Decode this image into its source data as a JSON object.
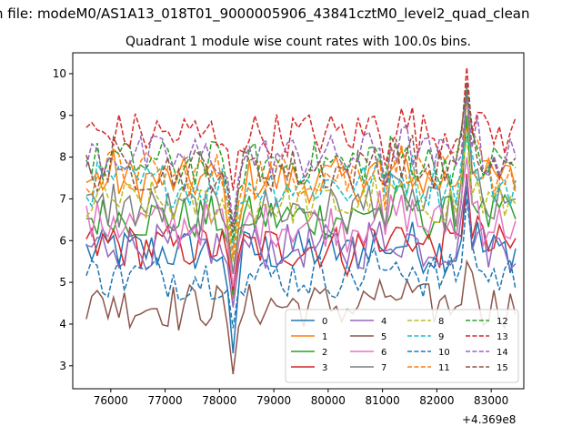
{
  "figure": {
    "suptitle": "n file: modeM0/AS1A13_018T01_9000005906_43841cztM0_level2_quad_clean",
    "title": "Quadrant 1 module wise count rates with 100.0s bins.",
    "x_offset_label": "+4.369e8"
  },
  "chart_data": {
    "type": "line",
    "title": "Quadrant 1 module wise count rates with 100.0s bins.",
    "xlabel": "",
    "ylabel": "",
    "x_offset": "+4.369e8",
    "xlim": [
      75300,
      83600
    ],
    "ylim": [
      2.45,
      10.5
    ],
    "x_ticks": [
      76000,
      77000,
      78000,
      79000,
      80000,
      81000,
      82000,
      83000
    ],
    "x_tick_labels": [
      "76000",
      "77000",
      "78000",
      "79000",
      "80000",
      "81000",
      "82000",
      "83000"
    ],
    "y_ticks": [
      3,
      4,
      5,
      6,
      7,
      8,
      9,
      10
    ],
    "y_tick_labels": [
      "3",
      "4",
      "5",
      "6",
      "7",
      "8",
      "9",
      "10"
    ],
    "grid": false,
    "legend_placement": "lower-right",
    "legend_columns": 4,
    "x_start": 75550,
    "x_step": 100,
    "dip_bin_index": 27,
    "series": [
      {
        "name": "0",
        "color": "#1f77b4",
        "dash": "solid",
        "mean": 5.75,
        "dip": 3.3,
        "peak": 7.3
      },
      {
        "name": "1",
        "color": "#ff7f0e",
        "dash": "solid",
        "mean": 7.45,
        "dip": 4.6,
        "peak": 9.5
      },
      {
        "name": "2",
        "color": "#2ca02c",
        "dash": "solid",
        "mean": 6.55,
        "dip": 4.7,
        "peak": 9.0
      },
      {
        "name": "3",
        "color": "#d62728",
        "dash": "solid",
        "mean": 5.85,
        "dip": 4.8,
        "peak": 7.6
      },
      {
        "name": "4",
        "color": "#9467bd",
        "dash": "solid",
        "mean": 5.85,
        "dip": 4.4,
        "peak": 7.5
      },
      {
        "name": "5",
        "color": "#8c564b",
        "dash": "solid",
        "mean": 4.45,
        "dip": 2.8,
        "peak": 5.5
      },
      {
        "name": "6",
        "color": "#e377c2",
        "dash": "solid",
        "mean": 6.4,
        "dip": 4.9,
        "peak": 8.0
      },
      {
        "name": "7",
        "color": "#7f7f7f",
        "dash": "solid",
        "mean": 6.75,
        "dip": 5.2,
        "peak": 9.7
      },
      {
        "name": "8",
        "color": "#bcbd22",
        "dash": "dashed",
        "mean": 6.9,
        "dip": 5.5,
        "peak": 8.5
      },
      {
        "name": "9",
        "color": "#17becf",
        "dash": "dashed",
        "mean": 7.35,
        "dip": 5.8,
        "peak": 8.5
      },
      {
        "name": "10",
        "color": "#1f77b4",
        "dash": "dashed",
        "mean": 5.15,
        "dip": 3.9,
        "peak": 7.0
      },
      {
        "name": "11",
        "color": "#ff7f0e",
        "dash": "dashed",
        "mean": 7.6,
        "dip": 5.6,
        "peak": 8.7
      },
      {
        "name": "12",
        "color": "#2ca02c",
        "dash": "dashed",
        "mean": 7.85,
        "dip": 6.0,
        "peak": 9.6
      },
      {
        "name": "13",
        "color": "#d62728",
        "dash": "dashed",
        "mean": 8.55,
        "dip": 7.2,
        "peak": 10.15
      },
      {
        "name": "14",
        "color": "#9467bd",
        "dash": "dashed",
        "mean": 8.0,
        "dip": 6.4,
        "peak": 9.5
      },
      {
        "name": "15",
        "color": "#8c564b",
        "dash": "dashed",
        "mean": 7.7,
        "dip": 6.2,
        "peak": 9.8
      }
    ]
  }
}
